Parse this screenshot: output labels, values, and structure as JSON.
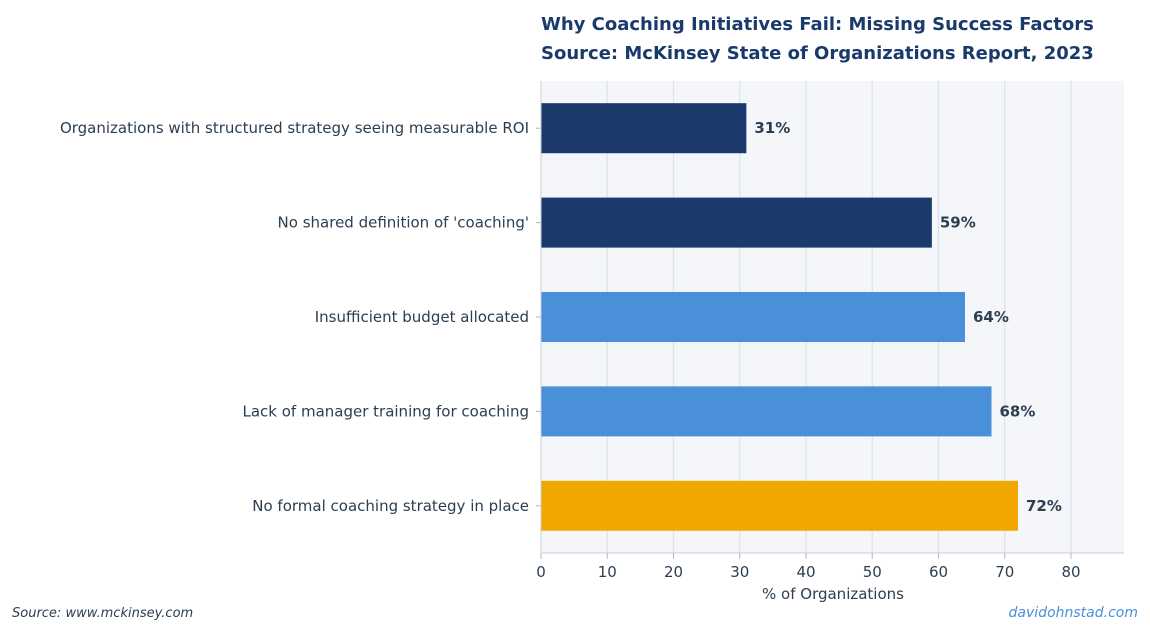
{
  "chart_data": {
    "type": "bar",
    "orientation": "horizontal",
    "title": "Why Coaching Initiatives Fail: Missing Success Factors",
    "subtitle": "Source: McKinsey State of Organizations Report, 2023",
    "xlabel": "% of Organizations",
    "ylabel": "",
    "xlim": [
      0,
      88
    ],
    "xticks": [
      0,
      10,
      20,
      30,
      40,
      50,
      60,
      70,
      80
    ],
    "grid": true,
    "categories": [
      "Organizations with structured strategy seeing measurable ROI",
      "No shared definition of 'coaching'",
      "Insufficient budget allocated",
      "Lack of manager training for coaching",
      "No formal coaching strategy in place"
    ],
    "values": [
      31,
      59,
      64,
      68,
      72
    ],
    "value_labels": [
      "31%",
      "59%",
      "64%",
      "68%",
      "72%"
    ],
    "colors": [
      "#1b3a6b",
      "#1b3a6b",
      "#4a90d9",
      "#4a90d9",
      "#f0a800"
    ]
  },
  "footer": {
    "source": "Source: www.mckinsey.com",
    "credit": "davidohnstad.com"
  },
  "colors": {
    "plot_background": "#f4f6fa",
    "grid": "#dde2ea",
    "title": "#1a3a6b"
  }
}
